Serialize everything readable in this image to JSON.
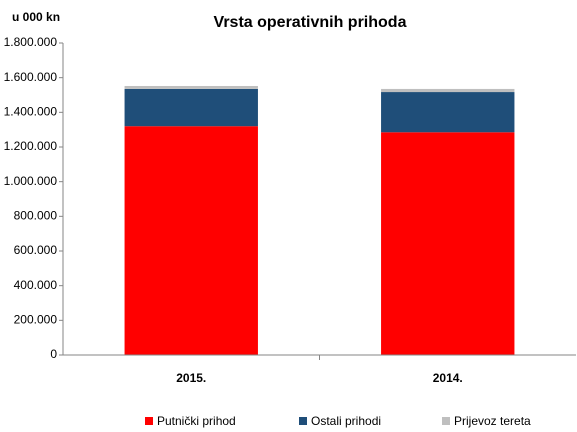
{
  "chart_data": {
    "type": "stacked_bar",
    "title": "Vrsta operativnih prihoda",
    "ylabel": "u 000 kn",
    "categories": [
      "2015.",
      "2014."
    ],
    "series": [
      {
        "name": "Putnički prihod",
        "color": "#ff0000",
        "values": [
          1320000,
          1285000
        ]
      },
      {
        "name": "Ostali prihodi",
        "color": "#1f4e79",
        "values": [
          215000,
          232000
        ]
      },
      {
        "name": "Prijevoz tereta",
        "color": "#bfbfbf",
        "values": [
          17000,
          18000
        ]
      }
    ],
    "ylim": [
      0,
      1800000
    ],
    "yticks": [
      0,
      {
        "value": 200000,
        "label": "200.000"
      },
      {
        "value": 400000,
        "label": "400.000"
      },
      {
        "value": 600000,
        "label": "600.000"
      },
      {
        "value": 800000,
        "label": "800.000"
      },
      {
        "value": 1000000,
        "label": "1.000.000"
      },
      {
        "value": 1200000,
        "label": "1.200.000"
      },
      {
        "value": 1400000,
        "label": "1.400.000"
      },
      {
        "value": 1600000,
        "label": "1.600.000"
      },
      {
        "value": 1800000,
        "label": "1.800.000"
      }
    ],
    "grid": false
  }
}
